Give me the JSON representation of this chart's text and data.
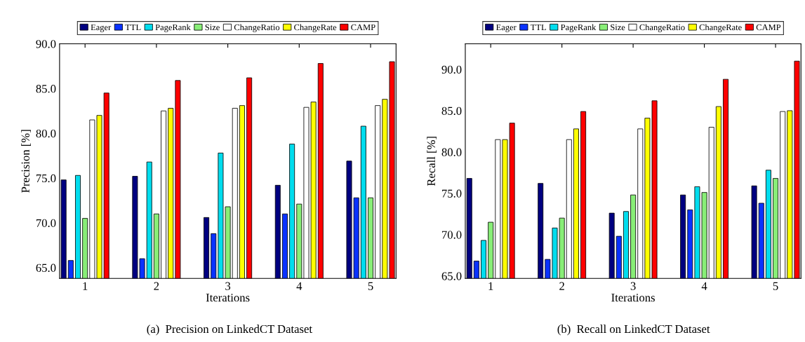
{
  "chart_data": [
    {
      "type": "bar",
      "xlabel": "Iterations",
      "ylabel": "Precision [%]",
      "categories": [
        "1",
        "2",
        "3",
        "4",
        "5"
      ],
      "series": [
        {
          "name": "Eager",
          "color": "#000080",
          "values": [
            74.8,
            75.2,
            70.6,
            74.2,
            76.9
          ]
        },
        {
          "name": "TTL",
          "color": "#0a32ff",
          "values": [
            65.8,
            66.0,
            68.8,
            71.0,
            72.8
          ]
        },
        {
          "name": "PageRank",
          "color": "#00ddee",
          "values": [
            75.3,
            76.8,
            77.8,
            78.8,
            80.8
          ]
        },
        {
          "name": "Size",
          "color": "#88ee77",
          "values": [
            70.5,
            71.0,
            71.8,
            72.1,
            72.8
          ]
        },
        {
          "name": "ChangeRatio",
          "color": "#ffffff",
          "values": [
            81.5,
            82.5,
            82.8,
            82.9,
            83.1
          ]
        },
        {
          "name": "ChangeRate",
          "color": "#ffff00",
          "values": [
            82.0,
            82.8,
            83.1,
            83.5,
            83.8
          ]
        },
        {
          "name": "CAMP",
          "color": "#ff0000",
          "values": [
            84.5,
            85.9,
            86.2,
            87.8,
            88.0
          ]
        }
      ],
      "ylim": [
        63.8,
        90
      ],
      "yticks": [
        {
          "value": 65,
          "label": "65.0"
        },
        {
          "value": 70,
          "label": "70.0"
        },
        {
          "value": 75,
          "label": "75.0"
        },
        {
          "value": 80,
          "label": "80.0"
        },
        {
          "value": 85,
          "label": "85.0"
        },
        {
          "value": 90,
          "label": "90.0"
        }
      ],
      "grid": false,
      "legend": "top",
      "annotations": [
        "(a)  Precision on LinkedCT Dataset"
      ]
    },
    {
      "type": "bar",
      "xlabel": "Iterations",
      "ylabel": "Recall [%]",
      "categories": [
        "1",
        "2",
        "3",
        "4",
        "5"
      ],
      "series": [
        {
          "name": "Eager",
          "color": "#000080",
          "values": [
            76.8,
            76.2,
            72.6,
            74.8,
            75.9
          ]
        },
        {
          "name": "TTL",
          "color": "#0a32ff",
          "values": [
            66.8,
            67.0,
            69.8,
            73.0,
            73.8
          ]
        },
        {
          "name": "PageRank",
          "color": "#00ddee",
          "values": [
            69.3,
            70.8,
            72.8,
            75.8,
            77.8
          ]
        },
        {
          "name": "Size",
          "color": "#88ee77",
          "values": [
            71.5,
            72.0,
            74.8,
            75.1,
            76.8
          ]
        },
        {
          "name": "ChangeRatio",
          "color": "#ffffff",
          "values": [
            81.5,
            81.5,
            82.8,
            83.0,
            84.9
          ]
        },
        {
          "name": "ChangeRate",
          "color": "#ffff00",
          "values": [
            81.5,
            82.8,
            84.1,
            85.5,
            85.0
          ]
        },
        {
          "name": "CAMP",
          "color": "#ff0000",
          "values": [
            83.5,
            84.9,
            86.2,
            88.8,
            91.0
          ]
        }
      ],
      "ylim": [
        64.7,
        93.1
      ],
      "yticks": [
        {
          "value": 65,
          "label": "65.0"
        },
        {
          "value": 70,
          "label": "70.0"
        },
        {
          "value": 75,
          "label": "75.0"
        },
        {
          "value": 80,
          "label": "80.0"
        },
        {
          "value": 85,
          "label": "85.0"
        },
        {
          "value": 90,
          "label": "90.0"
        }
      ],
      "grid": false,
      "legend": "top",
      "annotations": [
        "(b)  Recall on LinkedCT Dataset"
      ]
    }
  ]
}
